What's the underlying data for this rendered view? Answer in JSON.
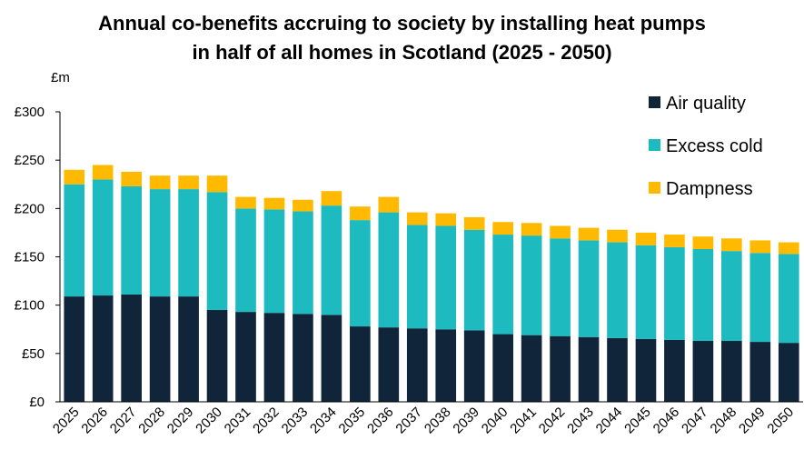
{
  "chart_data": {
    "type": "bar",
    "stacked": true,
    "title_lines": [
      "Annual co-benefits accruing to society by installing heat pumps",
      "in half of all homes in Scotland (2025 - 2050)"
    ],
    "y_unit": "£m",
    "ylim": [
      0,
      300
    ],
    "yticks": [
      0,
      50,
      100,
      150,
      200,
      250,
      300
    ],
    "ytick_labels": [
      "£0",
      "£50",
      "£100",
      "£150",
      "£200",
      "£250",
      "£300"
    ],
    "grid": false,
    "legend_position": "top-right",
    "categories": [
      "2025",
      "2026",
      "2027",
      "2028",
      "2029",
      "2030",
      "2031",
      "2032",
      "2033",
      "2034",
      "2035",
      "2036",
      "2037",
      "2038",
      "2039",
      "2040",
      "2041",
      "2042",
      "2043",
      "2044",
      "2045",
      "2046",
      "2047",
      "2048",
      "2049",
      "2050"
    ],
    "series": [
      {
        "name": "Air quality",
        "color": "#10243a",
        "values": [
          109,
          110,
          111,
          109,
          109,
          95,
          93,
          92,
          91,
          90,
          78,
          77,
          76,
          75,
          74,
          70,
          69,
          68,
          67,
          66,
          65,
          64,
          63,
          63,
          62,
          61
        ]
      },
      {
        "name": "Excess cold",
        "color": "#1dbbbf",
        "values": [
          116,
          120,
          112,
          111,
          111,
          122,
          107,
          107,
          106,
          113,
          110,
          119,
          107,
          107,
          104,
          103,
          103,
          101,
          100,
          99,
          97,
          96,
          95,
          93,
          92,
          92
        ]
      },
      {
        "name": "Dampness",
        "color": "#ffba00",
        "values": [
          15,
          15,
          15,
          14,
          14,
          17,
          12,
          12,
          12,
          15,
          14,
          16,
          13,
          13,
          13,
          13,
          13,
          13,
          13,
          13,
          13,
          13,
          13,
          13,
          13,
          12
        ]
      }
    ]
  }
}
